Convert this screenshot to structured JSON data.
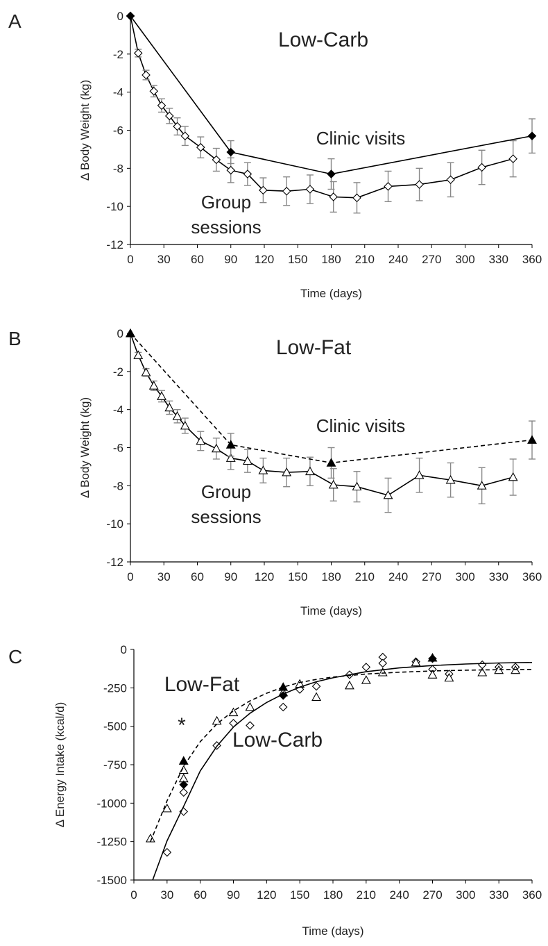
{
  "chart_data": [
    {
      "panel": "A",
      "type": "line",
      "title": "Low-Carb",
      "xlabel": "Time (days)",
      "ylabel": "Δ Body Weight (kg)",
      "xlim": [
        0,
        360
      ],
      "ylim": [
        -12,
        0
      ],
      "xticks": [
        "0",
        "30",
        "60",
        "90",
        "120",
        "150",
        "180",
        "210",
        "240",
        "270",
        "300",
        "330",
        "360"
      ],
      "yticks": [
        "0",
        "-2",
        "-4",
        "-6",
        "-8",
        "-10",
        "-12"
      ],
      "annotations": [
        "Clinic visits",
        "Group sessions"
      ],
      "series": [
        {
          "marker": "open-diamond",
          "x": [
            0,
            7,
            14,
            21,
            28,
            35,
            42,
            49,
            63,
            77,
            90,
            105,
            119,
            140,
            161,
            182,
            203,
            231,
            259,
            287,
            315,
            343
          ],
          "y": [
            0,
            -1.95,
            -3.1,
            -3.95,
            -4.7,
            -5.25,
            -5.8,
            -6.3,
            -6.9,
            -7.55,
            -8.1,
            -8.3,
            -9.15,
            -9.2,
            -9.1,
            -9.5,
            -9.55,
            -8.95,
            -8.85,
            -8.6,
            -7.95,
            -7.5
          ],
          "err": [
            0,
            0.2,
            0.25,
            0.3,
            0.35,
            0.4,
            0.45,
            0.5,
            0.55,
            0.6,
            0.65,
            0.6,
            0.65,
            0.75,
            0.75,
            0.8,
            0.8,
            0.8,
            0.85,
            0.9,
            0.9,
            0.95
          ]
        },
        {
          "marker": "filled-diamond",
          "x": [
            0,
            90,
            180,
            360
          ],
          "y": [
            0,
            -7.15,
            -8.3,
            -6.3
          ],
          "err": [
            0,
            0.6,
            0.8,
            0.9
          ]
        }
      ]
    },
    {
      "panel": "B",
      "type": "line",
      "title": "Low-Fat",
      "xlabel": "Time (days)",
      "ylabel": "Δ Body Weight (kg)",
      "xlim": [
        0,
        360
      ],
      "ylim": [
        -12,
        0
      ],
      "xticks": [
        "0",
        "30",
        "60",
        "90",
        "120",
        "150",
        "180",
        "210",
        "240",
        "270",
        "300",
        "330",
        "360"
      ],
      "yticks": [
        "0",
        "-2",
        "-4",
        "-6",
        "-8",
        "-10",
        "-12"
      ],
      "annotations": [
        "Clinic visits",
        "Group sessions"
      ],
      "series": [
        {
          "marker": "open-triangle",
          "x": [
            0,
            7,
            14,
            21,
            28,
            35,
            42,
            49,
            63,
            77,
            90,
            105,
            119,
            140,
            161,
            182,
            203,
            231,
            259,
            287,
            315,
            343
          ],
          "y": [
            0,
            -1.15,
            -2.05,
            -2.75,
            -3.3,
            -3.9,
            -4.35,
            -4.85,
            -5.65,
            -6.05,
            -6.55,
            -6.7,
            -7.2,
            -7.3,
            -7.25,
            -7.95,
            -8.05,
            -8.5,
            -7.45,
            -7.7,
            -8.0,
            -7.55
          ],
          "err": [
            0,
            0.15,
            0.2,
            0.25,
            0.3,
            0.35,
            0.35,
            0.4,
            0.5,
            0.55,
            0.6,
            0.6,
            0.65,
            0.75,
            0.75,
            0.85,
            0.8,
            0.9,
            0.9,
            0.9,
            0.95,
            0.95
          ]
        },
        {
          "marker": "filled-triangle",
          "line": "dashed",
          "x": [
            0,
            90,
            180,
            360
          ],
          "y": [
            0,
            -5.85,
            -6.8,
            -5.6
          ],
          "err": [
            0,
            0.6,
            0.8,
            1.0
          ]
        }
      ]
    },
    {
      "panel": "C",
      "type": "scatter",
      "xlabel": "Time (days)",
      "ylabel": "Δ Energy Intake (kcal/d)",
      "xlim": [
        0,
        360
      ],
      "ylim": [
        -1500,
        0
      ],
      "xticks": [
        "0",
        "30",
        "60",
        "90",
        "120",
        "150",
        "180",
        "210",
        "240",
        "270",
        "300",
        "330",
        "360"
      ],
      "yticks": [
        "0",
        "-250",
        "-500",
        "-750",
        "-1000",
        "-1250",
        "-1500"
      ],
      "annotations": [
        "Low-Fat",
        "Low-Carb",
        "*"
      ],
      "series": [
        {
          "marker": "open-diamond",
          "x": [
            30,
            45,
            45,
            75,
            90,
            105,
            135,
            150,
            165,
            195,
            210,
            225,
            225,
            255,
            270,
            285,
            315,
            330,
            345
          ],
          "y": [
            -1320,
            -1055,
            -930,
            -625,
            -480,
            -495,
            -375,
            -260,
            -240,
            -165,
            -115,
            -50,
            -90,
            -80,
            -130,
            -160,
            -100,
            -115,
            -115
          ]
        },
        {
          "marker": "open-triangle",
          "x": [
            15,
            30,
            45,
            45,
            75,
            90,
            105,
            135,
            150,
            165,
            195,
            210,
            225,
            255,
            270,
            285,
            315,
            330,
            345
          ],
          "y": [
            -1230,
            -1035,
            -785,
            -840,
            -465,
            -410,
            -375,
            -280,
            -225,
            -310,
            -235,
            -200,
            -150,
            -85,
            -165,
            -185,
            -150,
            -135,
            -135
          ]
        },
        {
          "marker": "filled-diamond",
          "x": [
            45,
            135,
            270
          ],
          "y": [
            -880,
            -300,
            -60
          ]
        },
        {
          "marker": "filled-triangle",
          "x": [
            45,
            135,
            270
          ],
          "y": [
            -725,
            -245,
            -55
          ]
        },
        {
          "line": "solid",
          "curve": "Low-Carb fit",
          "x": [
            17,
            30,
            45,
            60,
            75,
            90,
            105,
            120,
            135,
            150,
            165,
            180,
            210,
            240,
            270,
            300,
            330,
            360
          ],
          "y": [
            -1500,
            -1245,
            -1020,
            -790,
            -630,
            -505,
            -415,
            -345,
            -290,
            -245,
            -210,
            -185,
            -145,
            -120,
            -105,
            -95,
            -88,
            -85
          ]
        },
        {
          "line": "dashed",
          "curve": "Low-Fat fit",
          "x": [
            15,
            30,
            45,
            60,
            75,
            90,
            105,
            120,
            135,
            150,
            165,
            180,
            210,
            240,
            270,
            300,
            330,
            360
          ],
          "y": [
            -1250,
            -985,
            -760,
            -600,
            -485,
            -400,
            -335,
            -285,
            -245,
            -215,
            -195,
            -180,
            -160,
            -148,
            -140,
            -135,
            -132,
            -130
          ]
        }
      ]
    }
  ],
  "panel_labels": [
    "A",
    "B",
    "C"
  ]
}
